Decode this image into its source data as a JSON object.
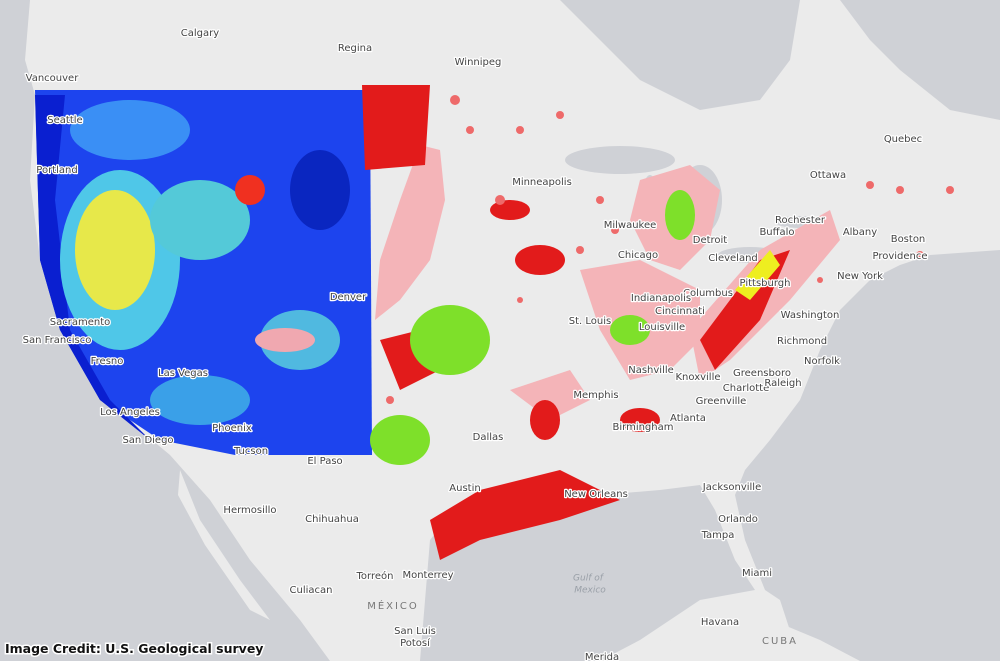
{
  "places": [
    "Calgary",
    "Regina",
    "Winnipeg",
    "Vancouver",
    "Seattle",
    "Portland",
    "Quebec",
    "Ottawa",
    "Minneapolis",
    "Milwaukee",
    "Detroit",
    "Chicago",
    "Rochester",
    "Buffalo",
    "Albany",
    "Boston",
    "Providence",
    "New York",
    "Cleveland",
    "Pittsburgh",
    "Columbus",
    "Indianapolis",
    "Cincinnati",
    "Washington",
    "St. Louis",
    "Louisville",
    "Richmond",
    "Norfolk",
    "Nashville",
    "Knoxville",
    "Greensboro",
    "Charlotte",
    "Raleigh",
    "Memphis",
    "Atlanta",
    "Greenville",
    "Birmingham",
    "Dallas",
    "Denver",
    "Sacramento",
    "San Francisco",
    "Fresno",
    "Las Vegas",
    "Los Angeles",
    "San Diego",
    "Phoenix",
    "Tucson",
    "El Paso",
    "Austin",
    "New Orleans",
    "Jacksonville",
    "Orlando",
    "Tampa",
    "Miami",
    "Hermosillo",
    "Chihuahua",
    "Torreón",
    "Monterrey",
    "Culiacan",
    "San Luis",
    "Potosí",
    "Havana",
    "Merida"
  ],
  "countries": [
    "MÉXICO",
    "CUBA"
  ],
  "water_labels": [
    "Gulf of",
    "Mexico"
  ],
  "credit": "Image Credit: U.S. Geological survey"
}
